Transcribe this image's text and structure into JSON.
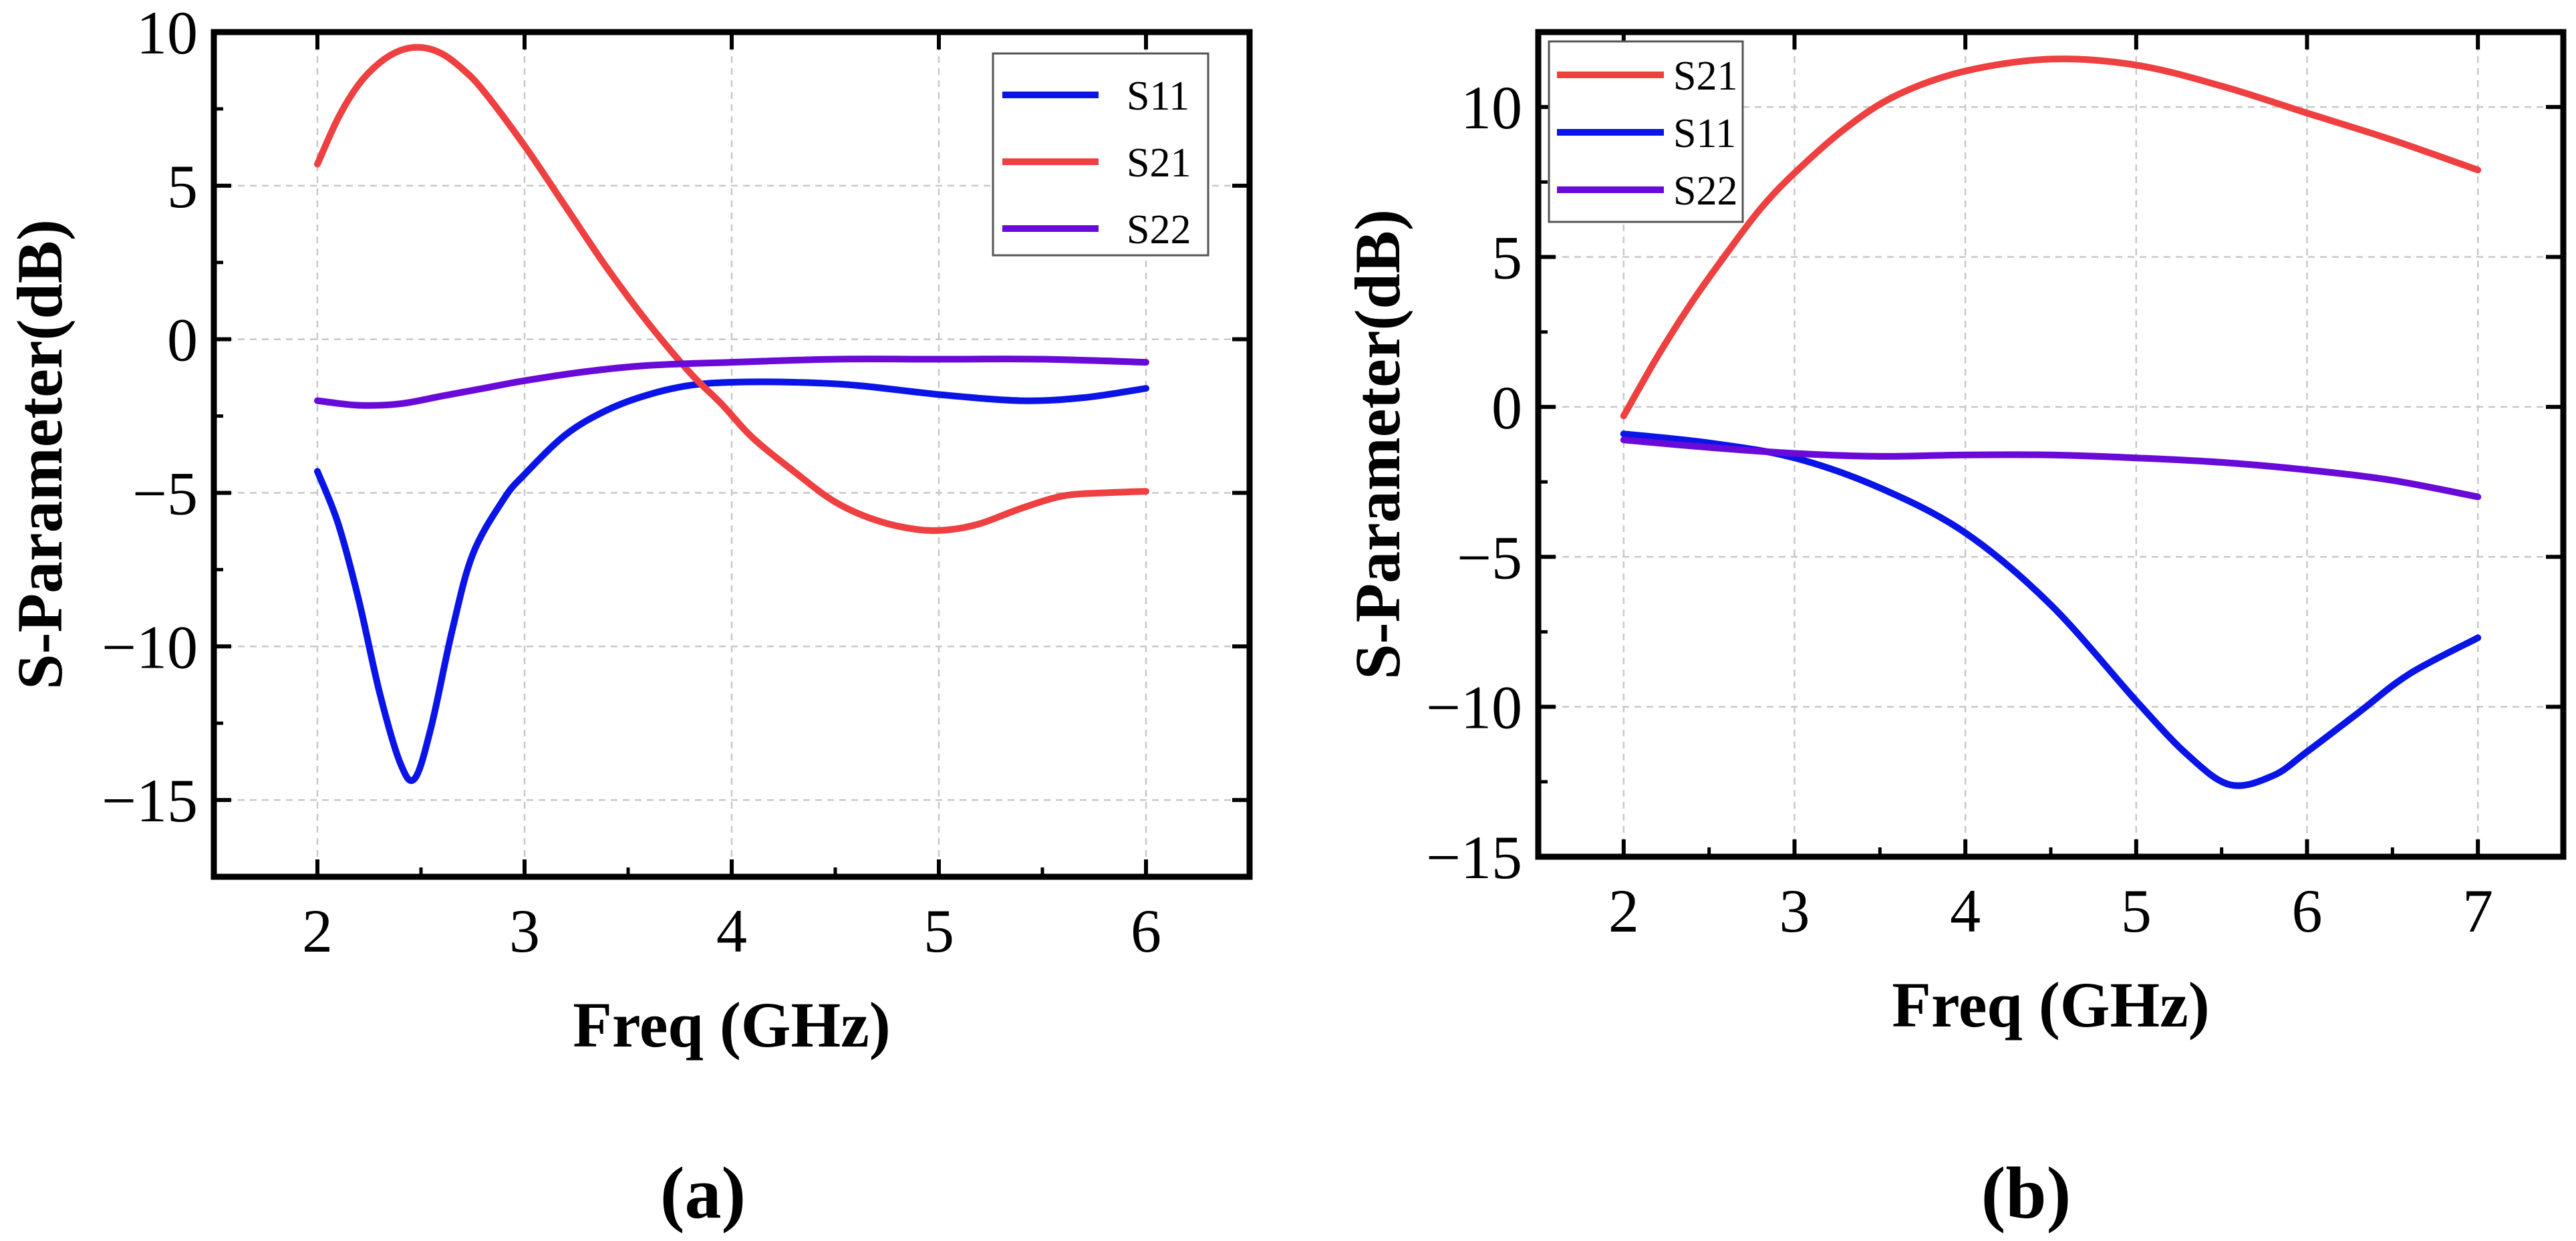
{
  "chart_data": [
    {
      "type": "line",
      "panel_label": "(a)",
      "title": "",
      "xlabel": "Freq (GHz)",
      "ylabel": "S-Parameter(dB)",
      "xlim": [
        1.5,
        6.5
      ],
      "ylim": [
        -17.5,
        10
      ],
      "xticks": [
        2,
        3,
        4,
        5,
        6
      ],
      "yticks": [
        -15,
        -10,
        -5,
        0,
        5,
        10
      ],
      "xtick_labels": [
        "2",
        "3",
        "4",
        "5",
        "6"
      ],
      "ytick_labels": [
        "−15",
        "−10",
        "−5",
        "0",
        "5",
        "10"
      ],
      "grid": true,
      "legend_position": "top-right",
      "series": [
        {
          "name": "S11",
          "color": "#0a14e6",
          "x": [
            2.0,
            2.1,
            2.2,
            2.3,
            2.4,
            2.47,
            2.55,
            2.65,
            2.75,
            2.9,
            3.0,
            3.2,
            3.4,
            3.6,
            3.8,
            4.0,
            4.3,
            4.6,
            5.0,
            5.4,
            5.7,
            6.0
          ],
          "y": [
            -4.3,
            -6.0,
            -8.5,
            -11.5,
            -13.8,
            -14.3,
            -12.6,
            -9.5,
            -7.0,
            -5.2,
            -4.4,
            -3.1,
            -2.3,
            -1.8,
            -1.5,
            -1.4,
            -1.4,
            -1.5,
            -1.8,
            -2.0,
            -1.9,
            -1.6
          ]
        },
        {
          "name": "S21",
          "color": "#ee4040",
          "x": [
            2.0,
            2.1,
            2.2,
            2.3,
            2.4,
            2.5,
            2.6,
            2.7,
            2.8,
            3.0,
            3.2,
            3.4,
            3.6,
            3.8,
            3.95,
            4.1,
            4.3,
            4.5,
            4.7,
            4.9,
            5.05,
            5.2,
            5.4,
            5.6,
            5.8,
            6.0
          ],
          "y": [
            5.7,
            7.2,
            8.3,
            9.0,
            9.4,
            9.5,
            9.3,
            8.8,
            8.1,
            6.3,
            4.3,
            2.3,
            0.5,
            -1.1,
            -2.1,
            -3.2,
            -4.3,
            -5.3,
            -5.9,
            -6.2,
            -6.2,
            -6.0,
            -5.5,
            -5.1,
            -5.0,
            -4.95
          ]
        },
        {
          "name": "S22",
          "color": "#6a0ad8",
          "x": [
            2.0,
            2.2,
            2.4,
            2.6,
            2.8,
            3.0,
            3.3,
            3.6,
            4.0,
            4.5,
            5.0,
            5.5,
            6.0
          ],
          "y": [
            -2.0,
            -2.15,
            -2.1,
            -1.85,
            -1.6,
            -1.35,
            -1.05,
            -0.85,
            -0.75,
            -0.65,
            -0.65,
            -0.65,
            -0.75
          ]
        }
      ]
    },
    {
      "type": "line",
      "panel_label": "(b)",
      "title": "",
      "xlabel": "Freq (GHz)",
      "ylabel": "S-Parameter(dB)",
      "xlim": [
        1.5,
        7.5
      ],
      "ylim": [
        -15,
        12.5
      ],
      "xticks": [
        2,
        3,
        4,
        5,
        6,
        7
      ],
      "yticks": [
        -15,
        -10,
        -5,
        0,
        5,
        10
      ],
      "xtick_labels": [
        "2",
        "3",
        "4",
        "5",
        "6",
        "7"
      ],
      "ytick_labels": [
        "−15",
        "−10",
        "−5",
        "0",
        "5",
        "10"
      ],
      "grid": true,
      "legend_position": "top-left",
      "series": [
        {
          "name": "S21",
          "color": "#ee4040",
          "x": [
            2.0,
            2.2,
            2.4,
            2.6,
            2.8,
            3.0,
            3.3,
            3.6,
            4.0,
            4.5,
            5.0,
            5.5,
            6.0,
            6.5,
            7.0
          ],
          "y": [
            -0.3,
            1.7,
            3.5,
            5.1,
            6.6,
            7.8,
            9.3,
            10.4,
            11.2,
            11.6,
            11.4,
            10.7,
            9.8,
            8.9,
            7.9
          ]
        },
        {
          "name": "S11",
          "color": "#0a14e6",
          "x": [
            2.0,
            2.5,
            3.0,
            3.5,
            4.0,
            4.5,
            5.0,
            5.3,
            5.55,
            5.8,
            6.0,
            6.3,
            6.6,
            7.0
          ],
          "y": [
            -0.9,
            -1.2,
            -1.7,
            -2.7,
            -4.2,
            -6.6,
            -9.8,
            -11.6,
            -12.6,
            -12.3,
            -11.5,
            -10.2,
            -8.9,
            -7.7
          ]
        },
        {
          "name": "S22",
          "color": "#6a0ad8",
          "x": [
            2.0,
            2.5,
            3.0,
            3.5,
            4.0,
            4.5,
            5.0,
            5.5,
            6.0,
            6.5,
            7.0
          ],
          "y": [
            -1.1,
            -1.35,
            -1.55,
            -1.65,
            -1.6,
            -1.6,
            -1.7,
            -1.85,
            -2.1,
            -2.45,
            -3.0
          ]
        }
      ]
    }
  ]
}
